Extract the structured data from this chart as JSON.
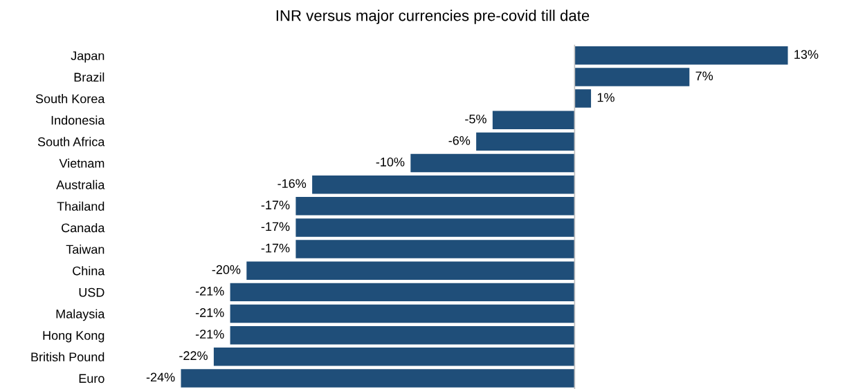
{
  "chart_data": {
    "type": "bar",
    "orientation": "horizontal",
    "title": "INR versus major currencies pre-covid till date",
    "categories": [
      "Japan",
      "Brazil",
      "South Korea",
      "Indonesia",
      "South Africa",
      "Vietnam",
      "Australia",
      "Thailand",
      "Canada",
      "Taiwan",
      "China",
      "USD",
      "Malaysia",
      "Hong Kong",
      "British Pound",
      "Euro"
    ],
    "values": [
      13,
      7,
      1,
      -5,
      -6,
      -10,
      -16,
      -17,
      -17,
      -17,
      -20,
      -21,
      -21,
      -21,
      -22,
      -24
    ],
    "value_labels": [
      "13%",
      "7%",
      "1%",
      "-5%",
      "-6%",
      "-10%",
      "-16%",
      "-17%",
      "-17%",
      "-17%",
      "-20%",
      "-21%",
      "-21%",
      "-21%",
      "-22%",
      "-24%"
    ],
    "color": "#1f4e79",
    "tick_labels": "y",
    "grid": false,
    "legend": false
  }
}
